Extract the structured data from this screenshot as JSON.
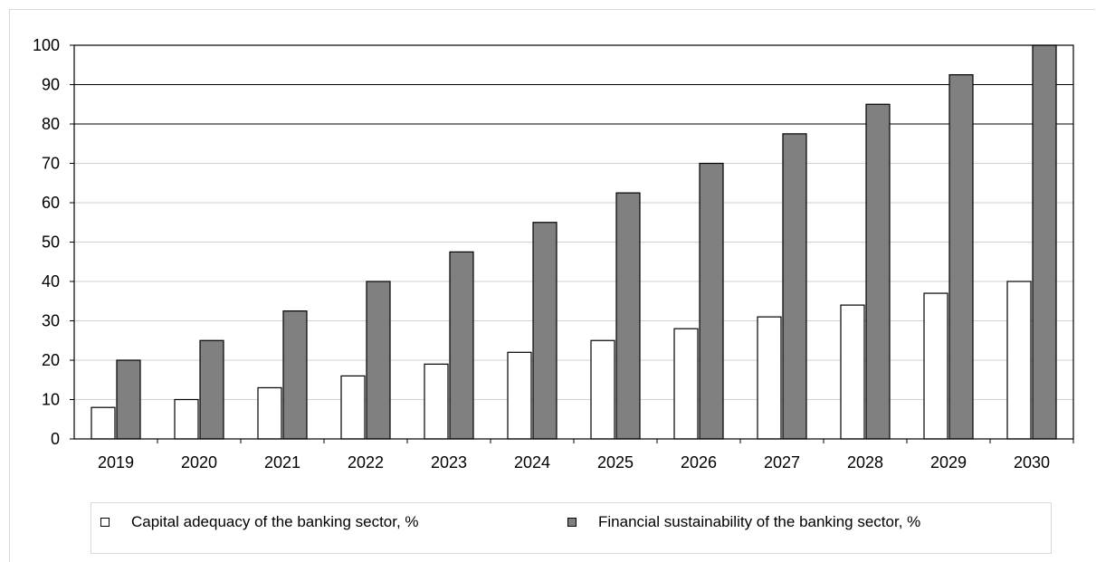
{
  "chart_data": {
    "type": "bar",
    "categories": [
      "2019",
      "2020",
      "2021",
      "2022",
      "2023",
      "2024",
      "2025",
      "2026",
      "2027",
      "2028",
      "2029",
      "2030"
    ],
    "series": [
      {
        "name": "Capital adequacy of the banking sector, %",
        "color": "#ffffff",
        "values": [
          8,
          10,
          13,
          16,
          19,
          22,
          25,
          28,
          31,
          34,
          37,
          40
        ]
      },
      {
        "name": "Financial sustainability of the banking sector, %",
        "color": "#808080",
        "values": [
          20,
          25,
          32.5,
          40,
          47.5,
          55,
          62.5,
          70,
          77.5,
          85,
          92.5,
          100
        ]
      }
    ],
    "yticks": [
      0,
      10,
      20,
      30,
      40,
      50,
      60,
      70,
      80,
      90,
      100
    ],
    "ylim": [
      0,
      100
    ],
    "title": "",
    "xlabel": "",
    "ylabel": "",
    "grid": true,
    "legend_position": "bottom"
  }
}
